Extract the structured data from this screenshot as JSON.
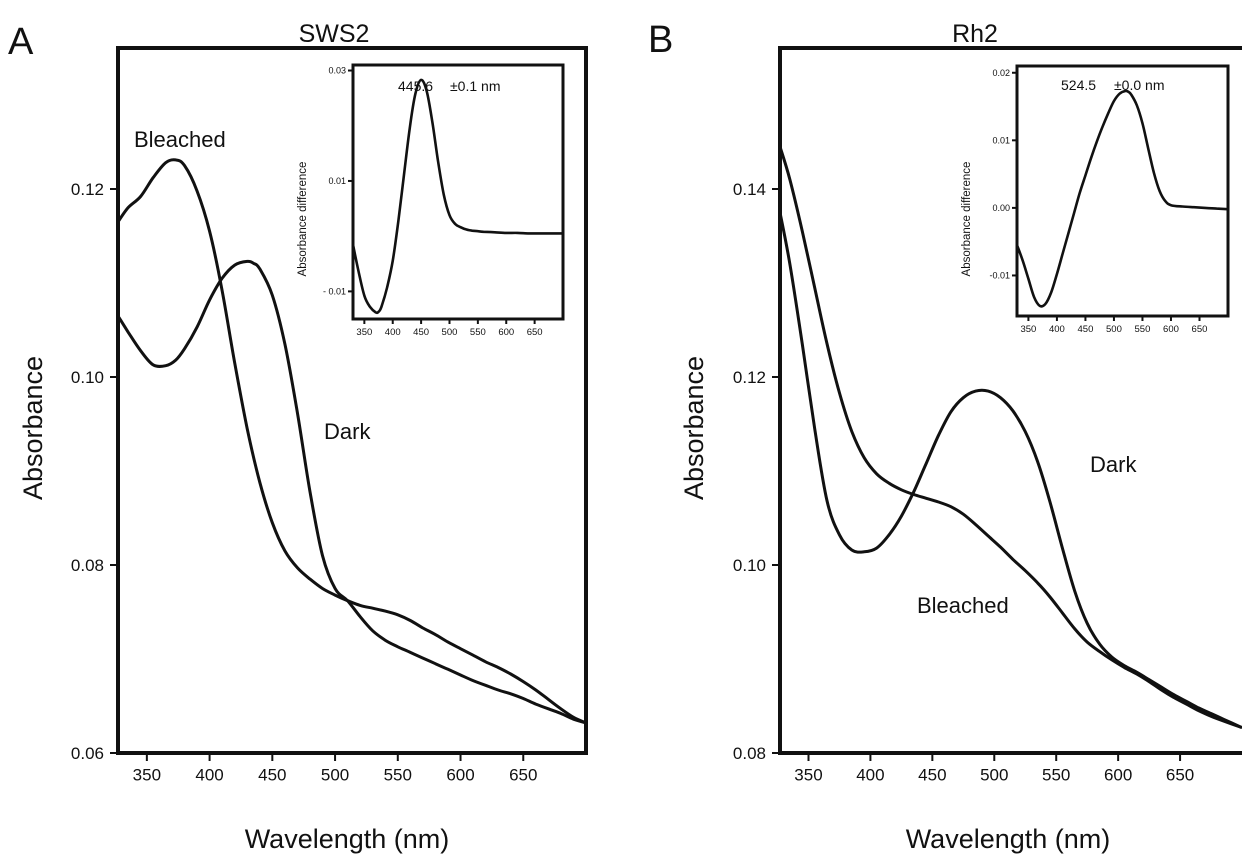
{
  "panels": {
    "A": {
      "letter": "A",
      "title": "SWS2",
      "ylabel": "Absorbance",
      "xlabel": "Wavelength (nm)",
      "inset_peak": "445.6",
      "inset_err": "±0.1 nm",
      "inset_ylabel": "Absorbance difference",
      "label_bleached": "Bleached",
      "label_dark": "Dark"
    },
    "B": {
      "letter": "B",
      "title": "Rh2",
      "ylabel": "Absorbance",
      "xlabel": "Wavelength (nm)",
      "inset_peak": "524.5",
      "inset_err": "±0.0 nm",
      "inset_ylabel": "Absorbance difference",
      "label_bleached": "Bleached",
      "label_dark": "Dark"
    }
  },
  "colors": {
    "line": "#111111",
    "background": "#ffffff"
  },
  "chart_data": [
    {
      "panel": "A",
      "type": "line",
      "title": "SWS2",
      "xlabel": "Wavelength (nm)",
      "ylabel": "Absorbance",
      "xlim": [
        327,
        700
      ],
      "ylim": [
        0.06,
        0.135
      ],
      "xticks": [
        350,
        400,
        450,
        500,
        550,
        600,
        650
      ],
      "yticks": [
        0.06,
        0.08,
        0.1,
        0.12
      ],
      "ytick_labels": [
        "0.06",
        "0.08",
        "0.10",
        "0.12"
      ],
      "series": [
        {
          "name": "Bleached",
          "x": [
            327,
            335,
            345,
            355,
            365,
            373,
            380,
            390,
            400,
            410,
            420,
            430,
            440,
            450,
            460,
            470,
            480,
            490,
            500,
            510,
            520,
            530,
            540,
            550,
            560,
            570,
            580,
            590,
            600,
            610,
            620,
            630,
            640,
            650,
            660,
            670,
            680,
            690,
            700
          ],
          "y": [
            0.1165,
            0.118,
            0.1192,
            0.1212,
            0.1228,
            0.1231,
            0.1225,
            0.1198,
            0.1155,
            0.1092,
            0.1015,
            0.0945,
            0.0888,
            0.0845,
            0.0815,
            0.0797,
            0.0785,
            0.0775,
            0.0768,
            0.0762,
            0.0757,
            0.0754,
            0.0751,
            0.0747,
            0.0741,
            0.0733,
            0.0726,
            0.0718,
            0.0711,
            0.0704,
            0.0697,
            0.0691,
            0.0684,
            0.0676,
            0.0667,
            0.0657,
            0.0647,
            0.0638,
            0.0632
          ]
        },
        {
          "name": "Dark",
          "x": [
            327,
            335,
            345,
            355,
            365,
            373,
            380,
            390,
            400,
            410,
            420,
            430,
            435,
            440,
            450,
            460,
            470,
            480,
            490,
            500,
            510,
            520,
            530,
            540,
            550,
            560,
            570,
            580,
            590,
            600,
            610,
            620,
            630,
            640,
            650,
            660,
            670,
            680,
            690,
            700
          ],
          "y": [
            0.1065,
            0.1048,
            0.1028,
            0.1013,
            0.1012,
            0.1018,
            0.103,
            0.1053,
            0.1082,
            0.1105,
            0.1119,
            0.1123,
            0.1121,
            0.1115,
            0.1087,
            0.1035,
            0.0962,
            0.0878,
            0.081,
            0.0775,
            0.0762,
            0.0745,
            0.073,
            0.072,
            0.0713,
            0.0707,
            0.0701,
            0.0695,
            0.0689,
            0.0683,
            0.0677,
            0.0672,
            0.0667,
            0.0663,
            0.0658,
            0.0652,
            0.0647,
            0.0642,
            0.0636,
            0.0632
          ]
        }
      ],
      "inset": {
        "type": "line",
        "ylabel": "Absorbance difference",
        "xlim": [
          330,
          700
        ],
        "ylim": [
          -0.015,
          0.031
        ],
        "xticks": [
          350,
          400,
          450,
          500,
          550,
          600,
          650
        ],
        "yticks": [
          0.03,
          0.01,
          -0.01
        ],
        "ytick_labels": [
          "0.03",
          "0.01",
          "- 0.01"
        ],
        "peak_label": "445.6",
        "error_label": "±0.1 nm",
        "series": [
          {
            "name": "",
            "x": [
              330,
              340,
              350,
              360,
              370,
              375,
              380,
              390,
              400,
              410,
              420,
              430,
              440,
              450,
              460,
              470,
              480,
              490,
              500,
              510,
              520,
              530,
              540,
              550,
              560,
              580,
              600,
              620,
              640,
              660,
              680,
              700
            ],
            "y": [
              -0.0015,
              -0.0065,
              -0.0108,
              -0.0128,
              -0.0138,
              -0.0137,
              -0.0128,
              -0.0093,
              -0.0045,
              0.0028,
              0.0113,
              0.0196,
              0.0258,
              0.0283,
              0.0262,
              0.0205,
              0.0135,
              0.0075,
              0.0038,
              0.0022,
              0.0016,
              0.0012,
              0.001,
              0.0009,
              0.0008,
              0.0007,
              0.0006,
              0.0006,
              0.0005,
              0.0005,
              0.0005,
              0.0005
            ]
          }
        ]
      }
    },
    {
      "panel": "B",
      "type": "line",
      "title": "Rh2",
      "xlabel": "Wavelength (nm)",
      "ylabel": "Absorbance",
      "xlim": [
        327,
        700
      ],
      "ylim": [
        0.08,
        0.155
      ],
      "xticks": [
        350,
        400,
        450,
        500,
        550,
        600,
        650
      ],
      "yticks": [
        0.08,
        0.1,
        0.12,
        0.14
      ],
      "ytick_labels": [
        "0.08",
        "0.10",
        "0.12",
        "0.14"
      ],
      "series": [
        {
          "name": "Bleached",
          "x": [
            327,
            335,
            345,
            355,
            365,
            375,
            385,
            395,
            405,
            415,
            425,
            435,
            445,
            455,
            465,
            475,
            485,
            495,
            505,
            515,
            525,
            535,
            545,
            555,
            565,
            575,
            585,
            595,
            605,
            615,
            625,
            635,
            645,
            655,
            665,
            675,
            685,
            700
          ],
          "y": [
            0.1445,
            0.141,
            0.1355,
            0.1295,
            0.1235,
            0.1183,
            0.1142,
            0.1114,
            0.1097,
            0.1087,
            0.108,
            0.1075,
            0.1071,
            0.1067,
            0.1062,
            0.1054,
            0.1043,
            0.1031,
            0.1019,
            0.1006,
            0.0994,
            0.0981,
            0.0966,
            0.0949,
            0.0932,
            0.0918,
            0.0908,
            0.0899,
            0.0891,
            0.0884,
            0.0876,
            0.0867,
            0.0859,
            0.0852,
            0.0845,
            0.0839,
            0.0834,
            0.0827
          ]
        },
        {
          "name": "Dark",
          "x": [
            327,
            335,
            345,
            355,
            365,
            375,
            385,
            395,
            405,
            415,
            425,
            435,
            445,
            455,
            465,
            475,
            485,
            495,
            505,
            515,
            525,
            535,
            545,
            555,
            565,
            575,
            585,
            595,
            605,
            615,
            625,
            635,
            645,
            655,
            665,
            675,
            685,
            700
          ],
          "y": [
            0.1375,
            0.132,
            0.1235,
            0.1145,
            0.1068,
            0.1032,
            0.1016,
            0.1014,
            0.1018,
            0.1032,
            0.1052,
            0.1078,
            0.1108,
            0.1138,
            0.1163,
            0.1178,
            0.1185,
            0.1185,
            0.1178,
            0.1164,
            0.1142,
            0.111,
            0.1067,
            0.1018,
            0.0972,
            0.0938,
            0.0916,
            0.0902,
            0.0893,
            0.0886,
            0.0878,
            0.087,
            0.0862,
            0.0855,
            0.0848,
            0.0842,
            0.0836,
            0.0827
          ]
        }
      ],
      "inset": {
        "type": "line",
        "ylabel": "Absorbance difference",
        "xlim": [
          330,
          700
        ],
        "ylim": [
          -0.016,
          0.021
        ],
        "xticks": [
          350,
          400,
          450,
          500,
          550,
          600,
          650
        ],
        "yticks": [
          0.02,
          0.01,
          0.0,
          -0.01
        ],
        "ytick_labels": [
          "0.02",
          "0.01",
          "0.00",
          "-0.01"
        ],
        "peak_label": "524.5",
        "error_label": "±0.0 nm",
        "series": [
          {
            "name": "",
            "x": [
              330,
              340,
              350,
              360,
              370,
              380,
              390,
              400,
              410,
              420,
              430,
              440,
              450,
              460,
              470,
              480,
              490,
              500,
              510,
              520,
              525,
              530,
              540,
              550,
              560,
              570,
              580,
              590,
              600,
              620,
              640,
              660,
              680,
              700
            ],
            "y": [
              -0.0055,
              -0.0078,
              -0.0105,
              -0.0132,
              -0.0145,
              -0.0142,
              -0.0125,
              -0.0098,
              -0.0068,
              -0.0038,
              -0.0008,
              0.0022,
              0.0048,
              0.0074,
              0.0098,
              0.012,
              0.014,
              0.0158,
              0.0169,
              0.0173,
              0.0172,
              0.0168,
              0.0152,
              0.0125,
              0.0088,
              0.0052,
              0.0025,
              0.001,
              0.0004,
              0.0002,
              0.0001,
              0.0,
              -0.0001,
              -0.0002
            ]
          }
        ]
      }
    }
  ]
}
